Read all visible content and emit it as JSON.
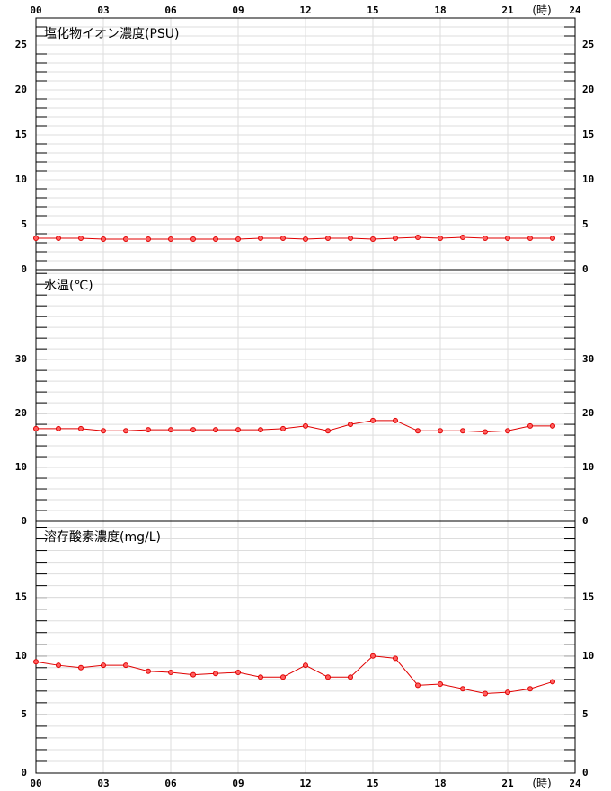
{
  "x_axis": {
    "xlim": [
      0,
      24
    ],
    "xticks": [
      {
        "value": 0,
        "label": "00"
      },
      {
        "value": 3,
        "label": "03"
      },
      {
        "value": 6,
        "label": "06"
      },
      {
        "value": 9,
        "label": "09"
      },
      {
        "value": 12,
        "label": "12"
      },
      {
        "value": 15,
        "label": "15"
      },
      {
        "value": 18,
        "label": "18"
      },
      {
        "value": 21,
        "label": "21"
      },
      {
        "value": 24,
        "label": "24"
      }
    ],
    "label": "(時)"
  },
  "chart_data": [
    {
      "type": "line",
      "title": "塩化物イオン濃度(PSU)",
      "color": "#e00000",
      "minor_step": 1,
      "x": [
        0,
        1,
        2,
        3,
        4,
        5,
        6,
        7,
        8,
        9,
        10,
        11,
        12,
        13,
        14,
        15,
        16,
        17,
        18,
        19,
        20,
        21,
        22,
        23
      ],
      "values": [
        3.5,
        3.5,
        3.5,
        3.4,
        3.4,
        3.4,
        3.4,
        3.4,
        3.4,
        3.4,
        3.5,
        3.5,
        3.4,
        3.5,
        3.5,
        3.4,
        3.5,
        3.6,
        3.5,
        3.6,
        3.5,
        3.5,
        3.5,
        3.5
      ],
      "ylim": [
        0,
        28
      ],
      "yticks": [
        0,
        5,
        10,
        15,
        20,
        25
      ]
    },
    {
      "type": "line",
      "title": "水温(℃)",
      "color": "#e00000",
      "minor_step": 2,
      "x": [
        0,
        1,
        2,
        3,
        4,
        5,
        6,
        7,
        8,
        9,
        10,
        11,
        12,
        13,
        14,
        15,
        16,
        17,
        18,
        19,
        20,
        21,
        22,
        23
      ],
      "values": [
        17.2,
        17.2,
        17.2,
        16.8,
        16.8,
        17.0,
        17.0,
        17.0,
        17.0,
        17.0,
        17.0,
        17.2,
        17.7,
        16.8,
        18.0,
        18.7,
        18.7,
        16.8,
        16.8,
        16.8,
        16.6,
        16.8,
        17.7,
        17.7
      ],
      "ylim": [
        0,
        46.7
      ],
      "yticks": [
        0,
        10,
        20,
        30
      ]
    },
    {
      "type": "line",
      "title": "溶存酸素濃度(mg/L)",
      "color": "#e00000",
      "minor_step": 1,
      "x": [
        0,
        1,
        2,
        3,
        4,
        5,
        6,
        7,
        8,
        9,
        10,
        11,
        12,
        13,
        14,
        15,
        16,
        17,
        18,
        19,
        20,
        21,
        22,
        23
      ],
      "values": [
        9.5,
        9.2,
        9.0,
        9.2,
        9.2,
        8.7,
        8.6,
        8.4,
        8.5,
        8.6,
        8.2,
        8.2,
        9.2,
        8.2,
        8.2,
        10.0,
        9.8,
        7.5,
        7.6,
        7.2,
        6.8,
        6.9,
        7.2,
        7.8
      ],
      "ylim": [
        0,
        21.5
      ],
      "yticks": [
        0,
        5,
        10,
        15
      ]
    }
  ]
}
